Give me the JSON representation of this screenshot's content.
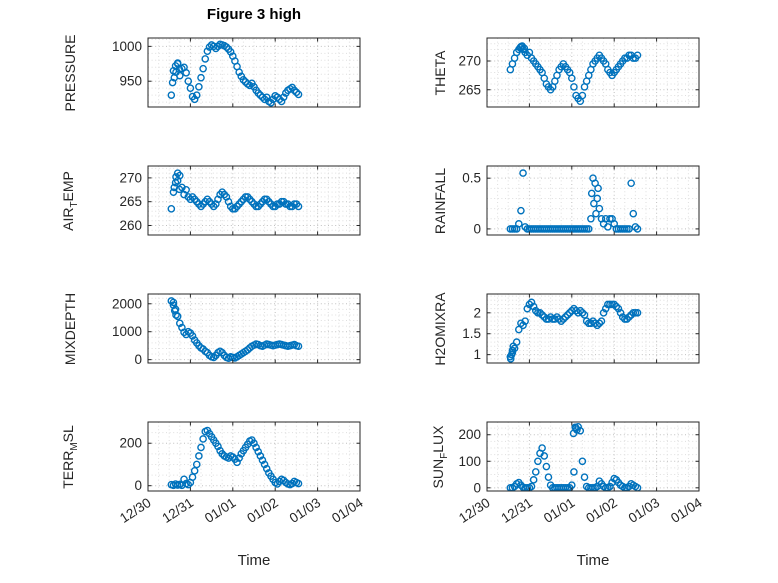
{
  "figure": {
    "title": "Figure 3 high",
    "xlabel": "Time",
    "x_tick_labels": [
      "12/30",
      "12/31",
      "01/01",
      "01/02",
      "01/03",
      "01/04"
    ],
    "xlim": [
      0,
      5
    ],
    "xticks": [
      0,
      1,
      2,
      3,
      4,
      5
    ],
    "xminor_step": 0.25,
    "colors": {
      "marker": "#0072BD",
      "axis": "#262626",
      "grid_major": "#c0c0c0",
      "grid_minor": "#dedede",
      "tick_text": "#262626"
    },
    "x_days": [
      0.55,
      0.6,
      0.65,
      0.7,
      0.75,
      0.8,
      0.85,
      0.9,
      0.95,
      1.0,
      1.05,
      1.1,
      1.15,
      1.2,
      1.25,
      1.3,
      1.35,
      1.4,
      1.45,
      1.5,
      1.55,
      1.6,
      1.65,
      1.7,
      1.75,
      1.8,
      1.85,
      1.9,
      1.95,
      2.0,
      2.05,
      2.1,
      2.15,
      2.2,
      2.25,
      2.3,
      2.35,
      2.4,
      2.45,
      2.5,
      2.55,
      2.6,
      2.65,
      2.7,
      2.75,
      2.8,
      2.85,
      2.9,
      2.95,
      3.0,
      3.05,
      3.1,
      3.15,
      3.2,
      3.25,
      3.3,
      3.35,
      3.4,
      3.45,
      3.5,
      3.55
    ]
  },
  "chart_data": [
    {
      "type": "scatter",
      "name": "pressure",
      "row": 0,
      "col": 0,
      "ylabel": [
        {
          "t": "PRESSURE",
          "sub": false
        }
      ],
      "ylim": [
        913,
        1012
      ],
      "yminor_step": 10,
      "yticks": [
        {
          "v": 950,
          "l": "950"
        },
        {
          "v": 1000,
          "l": "1000"
        }
      ],
      "y": [
        930,
        965,
        972,
        975,
        958,
        968,
        970,
        962,
        950,
        940,
        928,
        924,
        930,
        942,
        955,
        968,
        982,
        993,
        999,
        1002,
        1000,
        997,
        1000,
        1003,
        1002,
        1001,
        999,
        996,
        992,
        986,
        979,
        971,
        963,
        957,
        952,
        949,
        946,
        944,
        947,
        942,
        937,
        933,
        930,
        927,
        924,
        927,
        921,
        919,
        924,
        929,
        927,
        924,
        921,
        927,
        933,
        937,
        939,
        941,
        937,
        934,
        931
      ],
      "extra_x": [
        0.58,
        0.62,
        0.66,
        0.7,
        0.74
      ],
      "extra_y": [
        948,
        955,
        963,
        976,
        967
      ]
    },
    {
      "type": "scatter",
      "name": "theta",
      "row": 0,
      "col": 1,
      "ylabel": [
        {
          "t": "THETA",
          "sub": false
        }
      ],
      "ylim": [
        262,
        274
      ],
      "yminor_step": 1,
      "yticks": [
        {
          "v": 265,
          "l": "265"
        },
        {
          "v": 270,
          "l": "270"
        }
      ],
      "y": [
        268.5,
        269.5,
        270.5,
        271.5,
        272,
        272.5,
        272,
        271.5,
        271,
        271.5,
        270.5,
        270,
        269.5,
        269,
        268.5,
        268,
        267,
        266,
        265.5,
        265,
        265.5,
        266.5,
        267.5,
        268.5,
        269,
        269.5,
        269,
        268.5,
        268,
        267,
        265.5,
        264,
        263.5,
        263,
        264,
        265.5,
        266.5,
        267.5,
        268.5,
        269.5,
        270,
        270.5,
        271,
        270.5,
        270,
        269.5,
        268.5,
        268,
        267.5,
        268,
        268.5,
        269,
        269.5,
        270,
        270.5,
        270.5,
        271,
        271,
        270.5,
        270.5,
        271
      ],
      "extra_x": [
        0.78,
        0.83,
        0.88
      ],
      "extra_y": [
        272.3,
        272.6,
        272.2
      ]
    },
    {
      "type": "scatter",
      "name": "air-temp",
      "row": 1,
      "col": 0,
      "ylabel": [
        {
          "t": "AIR",
          "sub": false
        },
        {
          "t": "T",
          "sub": true
        },
        {
          "t": "EMP",
          "sub": false
        }
      ],
      "ylim": [
        258,
        272.5
      ],
      "yminor_step": 1,
      "yticks": [
        {
          "v": 260,
          "l": "260"
        },
        {
          "v": 265,
          "l": "265"
        },
        {
          "v": 270,
          "l": "270"
        }
      ],
      "y": [
        263.5,
        267,
        269,
        271,
        270.5,
        268,
        266.5,
        267.5,
        266,
        265.5,
        266,
        265.5,
        265,
        264.5,
        264,
        264.5,
        265,
        265.5,
        265,
        264.5,
        264,
        264.5,
        265.5,
        266.5,
        267,
        266.5,
        266,
        265,
        264,
        263.5,
        263.5,
        264,
        264.5,
        265,
        265.5,
        266,
        266,
        265.5,
        265,
        264.5,
        264,
        264,
        264.5,
        265,
        265.5,
        265.5,
        265,
        264.5,
        264,
        264,
        264.5,
        264.5,
        265,
        265,
        264.5,
        264.5,
        264,
        264,
        264.5,
        264.5,
        264
      ],
      "extra_x": [
        0.62,
        0.66,
        0.7,
        0.74
      ],
      "extra_y": [
        268,
        270.2,
        269.4,
        267.6
      ]
    },
    {
      "type": "scatter",
      "name": "rainfall",
      "row": 1,
      "col": 1,
      "ylabel": [
        {
          "t": "RAINFALL",
          "sub": false
        }
      ],
      "ylim": [
        -0.06,
        0.62
      ],
      "yminor_step": 0.1,
      "yticks": [
        {
          "v": 0,
          "l": "0"
        },
        {
          "v": 0.5,
          "l": "0.5"
        }
      ],
      "y": [
        0,
        0,
        0,
        0,
        0.05,
        0.18,
        0.55,
        0.02,
        0,
        0,
        0,
        0,
        0,
        0,
        0,
        0,
        0,
        0,
        0,
        0,
        0,
        0,
        0,
        0,
        0,
        0,
        0,
        0,
        0,
        0,
        0,
        0,
        0,
        0,
        0,
        0,
        0,
        0,
        0.1,
        0.5,
        0.45,
        0.3,
        0.2,
        0.1,
        0.05,
        0.1,
        0.02,
        0.1,
        0.1,
        0.05,
        0,
        0,
        0,
        0,
        0,
        0,
        0,
        0.45,
        0.15,
        0.02,
        0
      ],
      "extra_x": [
        2.47,
        2.52,
        2.57,
        2.62
      ],
      "extra_y": [
        0.35,
        0.25,
        0.15,
        0.4
      ]
    },
    {
      "type": "scatter",
      "name": "mixdepth",
      "row": 2,
      "col": 0,
      "ylabel": [
        {
          "t": "MIXDEPTH",
          "sub": false
        }
      ],
      "ylim": [
        -120,
        2350
      ],
      "yminor_step": 200,
      "yticks": [
        {
          "v": 0,
          "l": "0"
        },
        {
          "v": 1000,
          "l": "1000"
        },
        {
          "v": 2000,
          "l": "2000"
        }
      ],
      "y": [
        2100,
        2050,
        1800,
        1550,
        1300,
        1150,
        980,
        900,
        1000,
        950,
        850,
        700,
        600,
        500,
        420,
        380,
        300,
        250,
        150,
        100,
        80,
        150,
        250,
        300,
        250,
        150,
        80,
        50,
        100,
        80,
        60,
        100,
        150,
        200,
        250,
        300,
        350,
        420,
        480,
        520,
        560,
        540,
        500,
        480,
        520,
        560,
        540,
        520,
        500,
        520,
        540,
        560,
        540,
        520,
        500,
        480,
        500,
        520,
        540,
        500,
        480
      ],
      "extra_x": [
        0.6,
        0.63,
        0.66
      ],
      "extra_y": [
        1950,
        1750,
        1600
      ]
    },
    {
      "type": "scatter",
      "name": "h2omixra",
      "row": 2,
      "col": 1,
      "ylabel": [
        {
          "t": "H2OMIXRA",
          "sub": false
        }
      ],
      "ylim": [
        0.8,
        2.45
      ],
      "yminor_step": 0.1,
      "yticks": [
        {
          "v": 1,
          "l": "1"
        },
        {
          "v": 1.5,
          "l": "1.5"
        },
        {
          "v": 2,
          "l": "2"
        }
      ],
      "y": [
        0.95,
        1.05,
        1.15,
        1.3,
        1.6,
        1.75,
        1.7,
        1.8,
        2.1,
        2.2,
        2.25,
        2.15,
        2.05,
        2.0,
        2.0,
        1.95,
        1.9,
        1.85,
        1.85,
        1.9,
        1.85,
        1.85,
        1.9,
        1.85,
        1.8,
        1.85,
        1.9,
        1.95,
        2.0,
        2.05,
        2.1,
        2.05,
        2.0,
        2.05,
        2.0,
        1.95,
        1.8,
        1.75,
        1.75,
        1.8,
        1.75,
        1.7,
        1.75,
        1.8,
        2.0,
        2.1,
        2.2,
        2.2,
        2.2,
        2.2,
        2.15,
        2.1,
        2.0,
        1.9,
        1.85,
        1.85,
        1.9,
        1.95,
        2.0,
        2.0,
        2.0
      ],
      "extra_x": [
        0.56,
        0.58,
        0.6,
        0.62
      ],
      "extra_y": [
        0.9,
        1.0,
        1.1,
        1.2
      ]
    },
    {
      "type": "scatter",
      "name": "terr-msl",
      "row": 3,
      "col": 0,
      "ylabel": [
        {
          "t": "TERR",
          "sub": false
        },
        {
          "t": "M",
          "sub": true
        },
        {
          "t": "SL",
          "sub": false
        }
      ],
      "ylim": [
        -25,
        300
      ],
      "yminor_step": 50,
      "yticks": [
        {
          "v": 0,
          "l": "0"
        },
        {
          "v": 200,
          "l": "200"
        }
      ],
      "y": [
        5,
        2,
        8,
        3,
        6,
        2,
        30,
        10,
        5,
        15,
        40,
        70,
        100,
        140,
        180,
        220,
        255,
        260,
        245,
        230,
        215,
        200,
        185,
        165,
        150,
        140,
        135,
        130,
        140,
        135,
        125,
        110,
        130,
        150,
        165,
        180,
        195,
        210,
        215,
        200,
        180,
        160,
        140,
        120,
        100,
        80,
        60,
        45,
        30,
        15,
        8,
        20,
        30,
        25,
        15,
        8,
        5,
        10,
        20,
        15,
        10
      ],
      "extra_x": [],
      "extra_y": []
    },
    {
      "type": "scatter",
      "name": "sun-flux",
      "row": 3,
      "col": 1,
      "ylabel": [
        {
          "t": "SUN",
          "sub": false
        },
        {
          "t": "F",
          "sub": true
        },
        {
          "t": "LUX",
          "sub": false
        }
      ],
      "ylim": [
        -12,
        248
      ],
      "yminor_step": 25,
      "yticks": [
        {
          "v": 0,
          "l": "0"
        },
        {
          "v": 100,
          "l": "100"
        },
        {
          "v": 200,
          "l": "200"
        }
      ],
      "y": [
        0,
        0,
        5,
        15,
        20,
        10,
        2,
        0,
        0,
        0,
        5,
        30,
        60,
        100,
        130,
        150,
        120,
        80,
        40,
        10,
        0,
        0,
        0,
        0,
        0,
        0,
        0,
        0,
        0,
        10,
        60,
        225,
        230,
        215,
        100,
        40,
        5,
        0,
        0,
        0,
        0,
        5,
        25,
        15,
        5,
        0,
        0,
        5,
        20,
        35,
        30,
        20,
        10,
        5,
        0,
        0,
        5,
        15,
        10,
        5,
        0
      ],
      "extra_x": [
        2.04,
        2.08,
        2.12
      ],
      "extra_y": [
        205,
        228,
        218
      ]
    }
  ]
}
